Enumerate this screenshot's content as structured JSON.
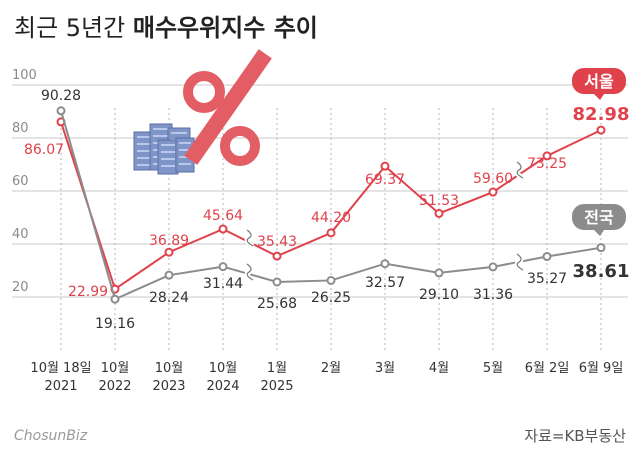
{
  "title": {
    "light": "최근 5년간",
    "bold": "매수우위지수 추이"
  },
  "source": "자료=KB부동산",
  "logo": "ChosunBiz",
  "colors": {
    "seoul": "#e0424b",
    "national": "#8c8c8c",
    "grid": "#c8c8c8"
  },
  "chart_data": {
    "type": "line",
    "categories": [
      "10월 18일\n2021",
      "10월\n2022",
      "10월\n2023",
      "10월\n2024",
      "1월\n2025",
      "2월",
      "3월",
      "4월",
      "5월",
      "6월 2일",
      "6월 9일"
    ],
    "ylim": [
      0,
      100
    ],
    "yticks": [
      20,
      40,
      60,
      80,
      100
    ],
    "grid": true,
    "series": [
      {
        "name": "서울",
        "values": [
          86.07,
          22.99,
          36.89,
          45.64,
          35.43,
          44.2,
          69.37,
          51.53,
          59.6,
          73.25,
          82.98
        ],
        "labels": [
          "86.07",
          "22.99",
          "36.89",
          "45.64",
          "35.43",
          "44.20",
          "69.37",
          "51.53",
          "59.60",
          "73.25",
          "82.98"
        ]
      },
      {
        "name": "전국",
        "values": [
          90.28,
          19.16,
          28.24,
          31.44,
          25.68,
          26.25,
          32.57,
          29.1,
          31.36,
          35.27,
          38.61
        ],
        "labels": [
          "90.28",
          "19.16",
          "28.24",
          "31.44",
          "25.68",
          "26.25",
          "32.57",
          "29.10",
          "31.36",
          "35.27",
          "38.61"
        ]
      }
    ]
  }
}
